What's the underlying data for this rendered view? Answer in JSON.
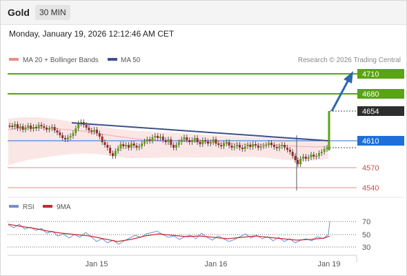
{
  "header": {
    "symbol": "Gold",
    "timeframe": "30 MIN",
    "datetime": "Monday, January 19, 2026 12:12:46 AM CET"
  },
  "legend": {
    "bb_label": "MA 20 + Bollinger Bands",
    "ma50_label": "MA 50",
    "copyright": "Research © 2026 Trading Central",
    "rsi_label": "RSI",
    "rsi_ma_label": "9MA"
  },
  "levels": {
    "r2": "4710",
    "r1": "4680",
    "last": "4654",
    "pivot": "4610",
    "s1": "4570",
    "s2": "4540"
  },
  "rsi_ticks": [
    "70",
    "50",
    "30"
  ],
  "x_ticks": [
    "Jan 15",
    "Jan 16",
    "Jan 19"
  ],
  "colors": {
    "resistance": "#5aa314",
    "pivot": "#1e6fd9",
    "support": "#d24a4a",
    "last": "#2e2e2e",
    "arrow": "#2b66b0",
    "bb_fill": "#fbe3e3",
    "ma50": "#3b4f8a",
    "rsi": "#6f8fd6",
    "rsi_ma": "#c7282c"
  },
  "icons": {
    "arrow": "up-arrow-icon"
  }
}
